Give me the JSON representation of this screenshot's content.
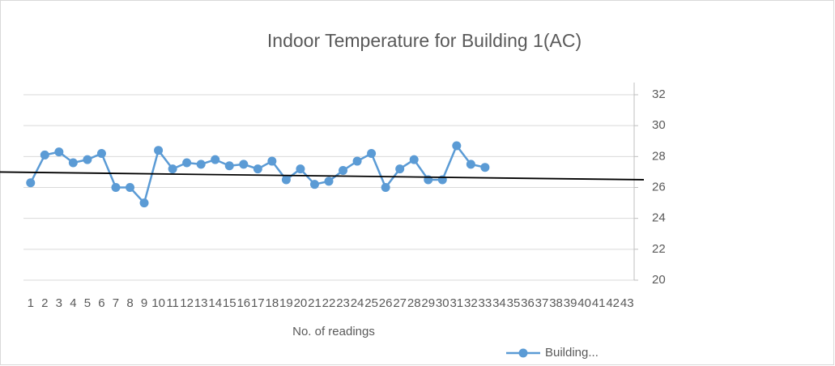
{
  "chart_data": {
    "type": "line",
    "title": "Indoor Temperature for Building 1(AC)",
    "x_label": "No.  of readings",
    "categories": [
      1,
      2,
      3,
      4,
      5,
      6,
      7,
      8,
      9,
      10,
      11,
      12,
      13,
      14,
      15,
      16,
      17,
      18,
      19,
      20,
      21,
      22,
      23,
      24,
      25,
      26,
      27,
      28,
      29,
      30,
      31,
      32,
      33,
      34,
      35,
      36,
      37,
      38,
      39,
      40,
      41,
      42,
      43
    ],
    "series": [
      {
        "name": "Building...",
        "color": "#5b9bd5",
        "values": [
          26.3,
          28.1,
          28.3,
          27.6,
          27.8,
          28.2,
          26.0,
          26.0,
          25.0,
          28.4,
          27.2,
          27.6,
          27.5,
          27.8,
          27.4,
          27.5,
          27.2,
          27.7,
          26.5,
          27.2,
          26.2,
          26.4,
          27.1,
          27.7,
          28.2,
          26.0,
          27.2,
          27.8,
          26.5,
          26.5,
          28.7,
          27.5,
          27.3,
          null,
          null,
          null,
          null,
          null,
          null,
          null,
          null,
          null,
          null
        ]
      }
    ],
    "trendline": {
      "color": "#000000",
      "values": [
        27.0,
        26.5
      ]
    },
    "ylim": [
      20,
      32
    ],
    "yticks": [
      20,
      22,
      24,
      26,
      28,
      30,
      32
    ],
    "grid": true,
    "y_axis_side": "right",
    "legend": "bottom-right"
  }
}
